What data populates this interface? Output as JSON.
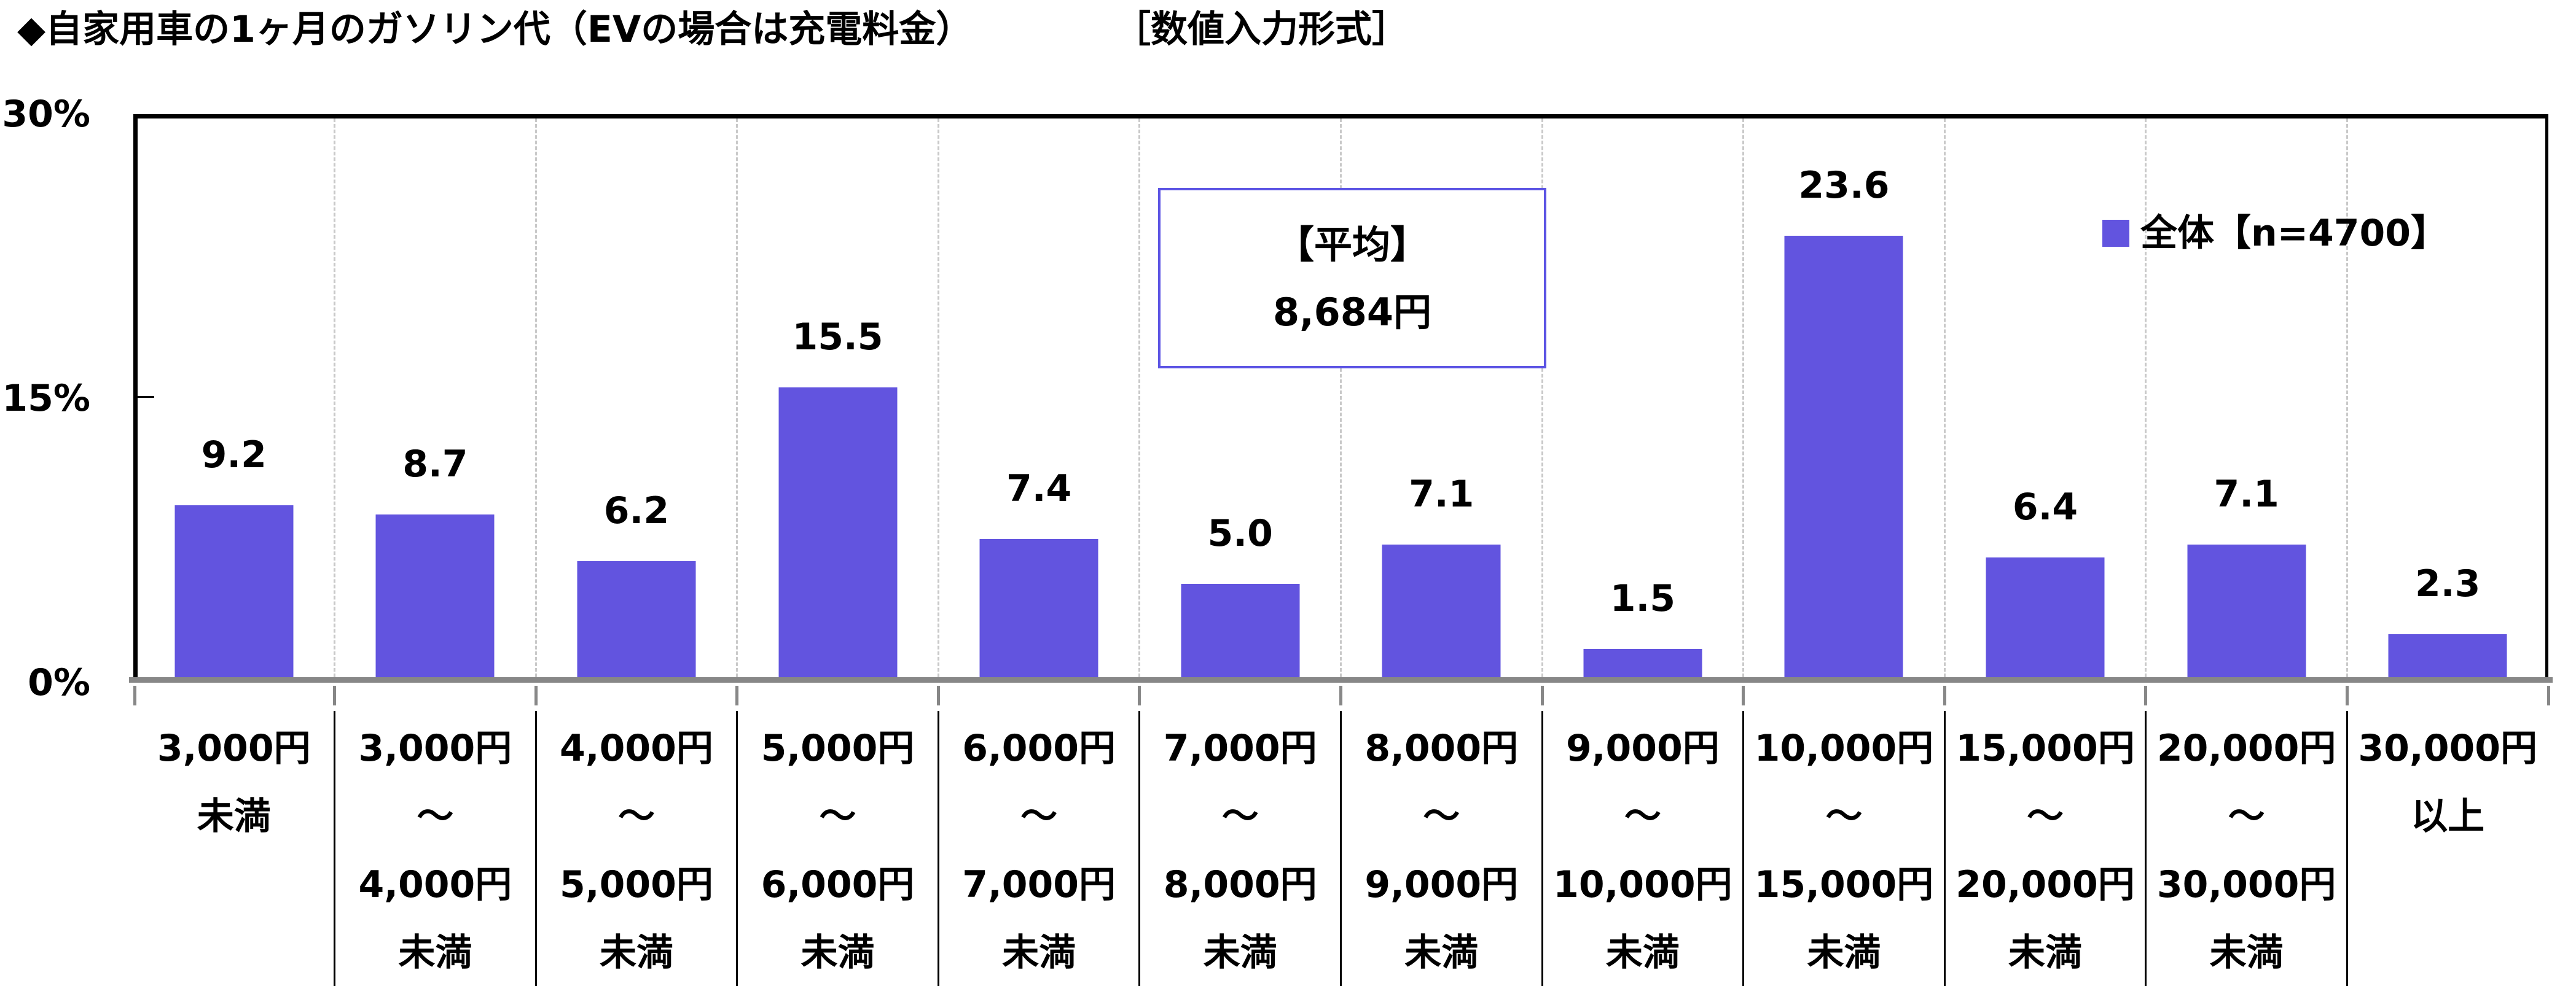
{
  "title": {
    "main": "◆自家用車の1ヶ月のガソリン代（EVの場合は充電料金）",
    "note": "［数値入力形式］"
  },
  "legend": {
    "label": "全体【n=4700】"
  },
  "average_box": {
    "heading": "【平均】",
    "value": "8,684円"
  },
  "colors": {
    "bar": "#6254DF",
    "avg_box_border": "#5C54E4",
    "axis_gray": "#878787",
    "gridline_gray": "#C9C9C9"
  },
  "chart_data": {
    "type": "bar",
    "title": "自家用車の1ヶ月のガソリン代（EVの場合は充電料金）［数値入力形式］",
    "ylabel": "%",
    "ylim": [
      0,
      30
    ],
    "y_ticks": [
      {
        "label": "30%",
        "value": 30
      },
      {
        "label": "15%",
        "value": 15
      },
      {
        "label": "0%",
        "value": 0
      }
    ],
    "grid": "vertical-dashed-category-separators",
    "legend_position": "top-right",
    "annotation": {
      "heading": "【平均】",
      "value": "8,684円"
    },
    "categories": [
      [
        "3,000円",
        "未満"
      ],
      [
        "3,000円",
        "～",
        "4,000円",
        "未満"
      ],
      [
        "4,000円",
        "～",
        "5,000円",
        "未満"
      ],
      [
        "5,000円",
        "～",
        "6,000円",
        "未満"
      ],
      [
        "6,000円",
        "～",
        "7,000円",
        "未満"
      ],
      [
        "7,000円",
        "～",
        "8,000円",
        "未満"
      ],
      [
        "8,000円",
        "～",
        "9,000円",
        "未満"
      ],
      [
        "9,000円",
        "～",
        "10,000円",
        "未満"
      ],
      [
        "10,000円",
        "～",
        "15,000円",
        "未満"
      ],
      [
        "15,000円",
        "～",
        "20,000円",
        "未満"
      ],
      [
        "20,000円",
        "～",
        "30,000円",
        "未満"
      ],
      [
        "30,000円",
        "以上"
      ]
    ],
    "series": [
      {
        "name": "全体【n=4700】",
        "values": [
          9.2,
          8.7,
          6.2,
          15.5,
          7.4,
          5.0,
          7.1,
          1.5,
          23.6,
          6.4,
          7.1,
          2.3
        ]
      }
    ]
  }
}
